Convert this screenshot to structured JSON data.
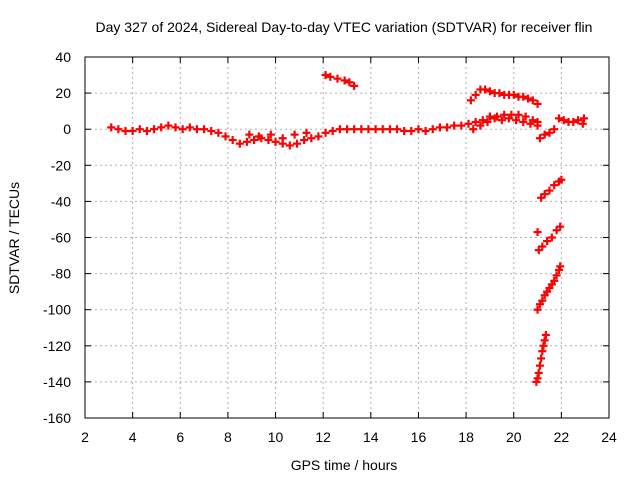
{
  "chart_data": {
    "type": "scatter",
    "title": "Day 327 of 2024, Sidereal Day-to-day VTEC variation (SDTVAR) for receiver flin",
    "xlabel": "GPS time / hours",
    "ylabel": "SDTVAR / TECUs",
    "xlim": [
      2,
      24
    ],
    "ylim": [
      -160,
      40
    ],
    "xticks": [
      2,
      4,
      6,
      8,
      10,
      12,
      14,
      16,
      18,
      20,
      22,
      24
    ],
    "yticks": [
      -160,
      -140,
      -120,
      -100,
      -80,
      -60,
      -40,
      -20,
      0,
      20,
      40
    ],
    "grid": true,
    "marker": "+",
    "color": "#ff0000",
    "series": [
      {
        "points": [
          [
            3.1,
            1
          ],
          [
            3.4,
            0
          ],
          [
            3.7,
            -1
          ],
          [
            4.0,
            -1
          ],
          [
            4.3,
            0
          ],
          [
            4.6,
            -1
          ],
          [
            4.9,
            0
          ],
          [
            5.2,
            1
          ],
          [
            5.5,
            2
          ],
          [
            5.8,
            1
          ],
          [
            6.1,
            0
          ],
          [
            6.4,
            1
          ],
          [
            6.7,
            0
          ],
          [
            7.0,
            0
          ],
          [
            7.3,
            -1
          ],
          [
            7.6,
            -2
          ],
          [
            7.9,
            -4
          ],
          [
            8.2,
            -6
          ],
          [
            8.5,
            -8
          ],
          [
            8.8,
            -7
          ],
          [
            9.1,
            -6
          ],
          [
            9.4,
            -5
          ],
          [
            9.7,
            -6
          ],
          [
            10.0,
            -7
          ],
          [
            10.3,
            -8
          ],
          [
            10.6,
            -9
          ],
          [
            10.9,
            -8
          ],
          [
            11.2,
            -6
          ],
          [
            11.5,
            -5
          ],
          [
            11.8,
            -4
          ],
          [
            12.1,
            -2
          ],
          [
            12.4,
            -1
          ],
          [
            12.7,
            0
          ],
          [
            13.0,
            0
          ],
          [
            13.3,
            0
          ],
          [
            13.6,
            0
          ],
          [
            13.9,
            0
          ],
          [
            14.2,
            0
          ],
          [
            14.5,
            0
          ],
          [
            14.8,
            0
          ],
          [
            15.1,
            0
          ],
          [
            15.4,
            -1
          ],
          [
            15.7,
            -1
          ],
          [
            16.0,
            0
          ],
          [
            16.3,
            -1
          ],
          [
            16.6,
            0
          ],
          [
            16.9,
            1
          ],
          [
            17.2,
            1
          ],
          [
            17.5,
            2
          ],
          [
            17.8,
            2
          ],
          [
            18.1,
            3
          ],
          [
            18.4,
            4
          ],
          [
            18.7,
            5
          ],
          [
            19.0,
            7
          ],
          [
            19.3,
            7
          ],
          [
            19.6,
            8
          ],
          [
            19.9,
            8
          ],
          [
            20.2,
            8
          ],
          [
            20.5,
            7
          ],
          [
            20.8,
            5
          ],
          [
            21.0,
            4
          ],
          [
            8.9,
            -3
          ],
          [
            9.3,
            -4
          ],
          [
            9.8,
            -3
          ],
          [
            10.3,
            -5
          ],
          [
            10.8,
            -3
          ],
          [
            11.3,
            -2
          ],
          [
            18.3,
            0
          ],
          [
            18.6,
            2
          ],
          [
            18.9,
            4
          ],
          [
            19.2,
            6
          ],
          [
            19.5,
            5
          ],
          [
            19.8,
            6
          ],
          [
            20.1,
            5
          ],
          [
            20.4,
            4
          ],
          [
            20.7,
            3
          ],
          [
            21.0,
            2
          ]
        ]
      },
      {
        "points": [
          [
            12.1,
            30
          ],
          [
            12.3,
            29
          ],
          [
            12.6,
            28
          ],
          [
            12.9,
            27
          ],
          [
            13.1,
            26
          ],
          [
            13.3,
            24
          ]
        ]
      },
      {
        "points": [
          [
            18.2,
            16
          ],
          [
            18.4,
            19
          ],
          [
            18.6,
            22
          ],
          [
            18.8,
            22
          ],
          [
            19.0,
            21
          ],
          [
            19.2,
            20
          ],
          [
            19.4,
            20
          ],
          [
            19.6,
            19
          ],
          [
            19.8,
            19
          ],
          [
            20.0,
            19
          ],
          [
            20.2,
            18
          ],
          [
            20.4,
            18
          ],
          [
            20.6,
            17
          ],
          [
            20.8,
            16
          ],
          [
            21.0,
            14
          ]
        ]
      },
      {
        "points": [
          [
            21.1,
            -5
          ],
          [
            21.3,
            -3
          ],
          [
            21.5,
            -2
          ],
          [
            21.7,
            0
          ],
          [
            21.9,
            6
          ],
          [
            22.1,
            5
          ],
          [
            22.3,
            4
          ],
          [
            22.5,
            4
          ],
          [
            22.7,
            5
          ],
          [
            22.9,
            3
          ],
          [
            22.95,
            6
          ]
        ]
      },
      {
        "points": [
          [
            21.15,
            -38
          ],
          [
            21.3,
            -36
          ],
          [
            21.5,
            -34
          ],
          [
            21.7,
            -31
          ],
          [
            21.9,
            -29
          ],
          [
            22.0,
            -28
          ]
        ]
      },
      {
        "points": [
          [
            21.0,
            -57
          ]
        ]
      },
      {
        "points": [
          [
            21.05,
            -67
          ],
          [
            21.2,
            -65
          ],
          [
            21.4,
            -62
          ],
          [
            21.6,
            -60
          ],
          [
            21.8,
            -56
          ],
          [
            21.95,
            -54
          ]
        ]
      },
      {
        "points": [
          [
            21.0,
            -100
          ],
          [
            21.1,
            -97
          ],
          [
            21.2,
            -95
          ],
          [
            21.3,
            -92
          ],
          [
            21.4,
            -90
          ],
          [
            21.5,
            -88
          ],
          [
            21.6,
            -86
          ],
          [
            21.7,
            -84
          ],
          [
            21.8,
            -81
          ],
          [
            21.9,
            -78
          ],
          [
            21.95,
            -76
          ]
        ]
      },
      {
        "points": [
          [
            20.95,
            -140
          ],
          [
            21.0,
            -138
          ],
          [
            21.05,
            -135
          ],
          [
            21.1,
            -131
          ],
          [
            21.15,
            -127
          ],
          [
            21.2,
            -123
          ],
          [
            21.25,
            -120
          ],
          [
            21.3,
            -117
          ],
          [
            21.35,
            -114
          ]
        ]
      }
    ]
  }
}
